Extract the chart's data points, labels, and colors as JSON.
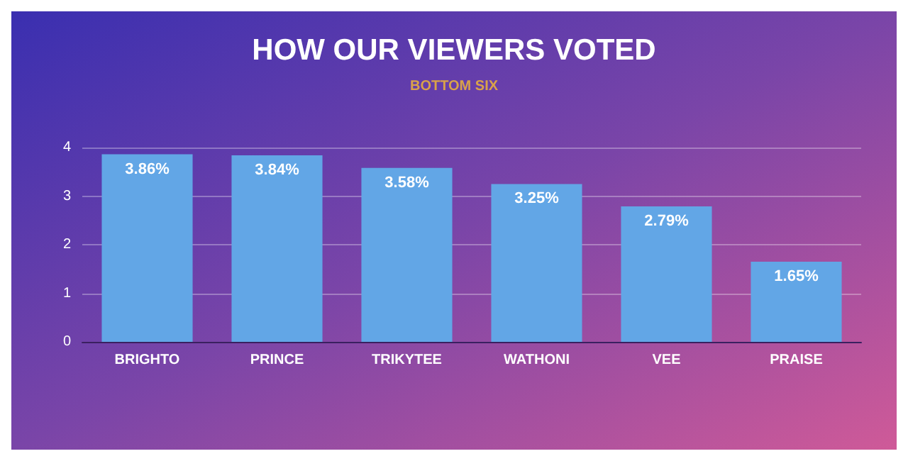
{
  "chart_data": {
    "type": "bar",
    "title": "HOW OUR VIEWERS VOTED",
    "subtitle": "BOTTOM SIX",
    "categories": [
      "BRIGHTO",
      "PRINCE",
      "TRIKYTEE",
      "WATHONI",
      "VEE",
      "PRAISE"
    ],
    "values": [
      3.86,
      3.84,
      3.58,
      3.25,
      2.79,
      1.65
    ],
    "value_labels": [
      "3.86%",
      "3.84%",
      "3.58%",
      "3.25%",
      "2.79%",
      "1.65%"
    ],
    "color": "#62a6e6",
    "ylim": [
      0,
      4
    ],
    "yticks": [
      0,
      1,
      2,
      3,
      4
    ],
    "grid": "y"
  }
}
